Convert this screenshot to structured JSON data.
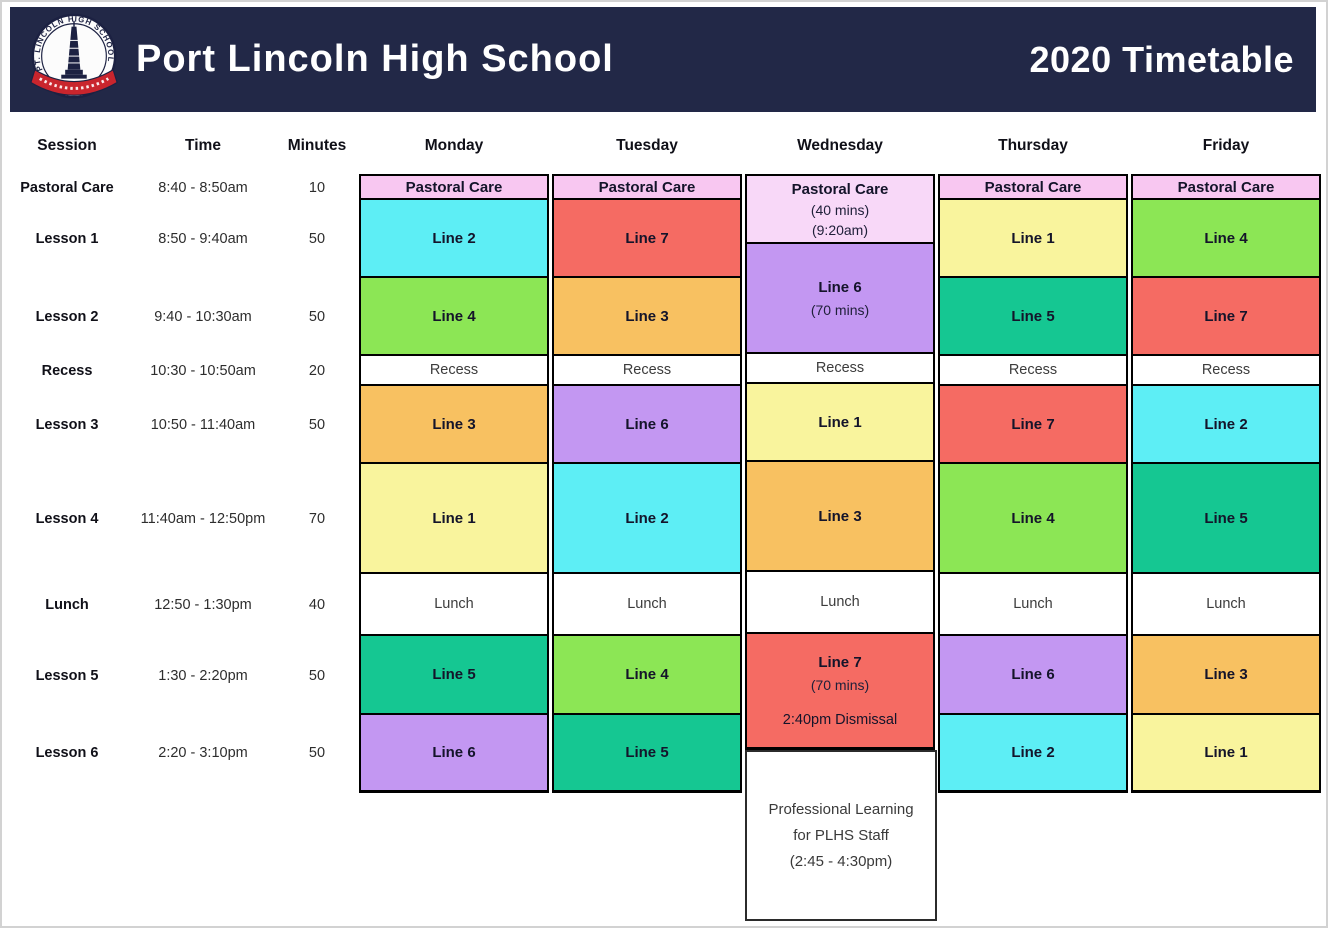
{
  "header": {
    "school_name": "Port Lincoln High School",
    "title": "2020 Timetable",
    "bg_color": "#222847",
    "logo_ring_text": "PT. LINCOLN  HIGH  SCHOOL",
    "logo_banner_color": "#c9252d"
  },
  "columns": {
    "session_header": "Session",
    "time_header": "Time",
    "minutes_header": "Minutes",
    "day_headers": [
      "Monday",
      "Tuesday",
      "Wednesday",
      "Thursday",
      "Friday"
    ]
  },
  "sessions": [
    {
      "name": "Pastoral Care",
      "time": "8:40 - 8:50am",
      "minutes": "10"
    },
    {
      "name": "Lesson 1",
      "time": "8:50 - 9:40am",
      "minutes": "50"
    },
    {
      "name": "Lesson 2",
      "time": "9:40 - 10:30am",
      "minutes": "50"
    },
    {
      "name": "Recess",
      "time": "10:30 - 10:50am",
      "minutes": "20"
    },
    {
      "name": "Lesson 3",
      "time": "10:50 - 11:40am",
      "minutes": "50"
    },
    {
      "name": "Lesson 4",
      "time": "11:40am - 12:50pm",
      "minutes": "70"
    },
    {
      "name": "Lunch",
      "time": "12:50 - 1:30pm",
      "minutes": "40"
    },
    {
      "name": "Lesson 5",
      "time": "1:30 - 2:20pm",
      "minutes": "50"
    },
    {
      "name": "Lesson 6",
      "time": "2:20 - 3:10pm",
      "minutes": "50"
    }
  ],
  "palette": {
    "pink": "#f8c7f1",
    "pinklight": "#f8d8f8",
    "cyan": "#5deef5",
    "green": "#8ce655",
    "red": "#f56b63",
    "orange": "#f8c161",
    "yellow": "#f9f49d",
    "teal": "#15c792",
    "purple": "#c397f2",
    "white": "#ffffff"
  },
  "days": [
    {
      "label": "Monday",
      "cells": [
        {
          "label": "Pastoral Care",
          "color": "pink"
        },
        {
          "label": "Line 2",
          "color": "cyan"
        },
        {
          "label": "Line 4",
          "color": "green"
        },
        {
          "label": "Recess",
          "color": "white"
        },
        {
          "label": "Line 3",
          "color": "orange"
        },
        {
          "label": "Line 1",
          "color": "yellow"
        },
        {
          "label": "Lunch",
          "color": "white"
        },
        {
          "label": "Line 5",
          "color": "teal"
        },
        {
          "label": "Line 6",
          "color": "purple"
        }
      ]
    },
    {
      "label": "Tuesday",
      "cells": [
        {
          "label": "Pastoral Care",
          "color": "pink"
        },
        {
          "label": "Line 7",
          "color": "red"
        },
        {
          "label": "Line 3",
          "color": "orange"
        },
        {
          "label": "Recess",
          "color": "white"
        },
        {
          "label": "Line 6",
          "color": "purple"
        },
        {
          "label": "Line 2",
          "color": "cyan"
        },
        {
          "label": "Lunch",
          "color": "white"
        },
        {
          "label": "Line 4",
          "color": "green"
        },
        {
          "label": "Line 5",
          "color": "teal"
        }
      ]
    },
    {
      "label": "Wednesday",
      "cells": [
        {
          "label": "Pastoral Care",
          "sub": [
            "(40 mins)",
            "(9:20am)"
          ],
          "color": "pinklight"
        },
        {
          "label": "Line 6",
          "sub": [
            "(70 mins)"
          ],
          "color": "purple"
        },
        {
          "label": "Recess",
          "color": "white"
        },
        {
          "label": "Line 1",
          "color": "yellow"
        },
        {
          "label": "Line 3",
          "color": "orange"
        },
        {
          "label": "Lunch",
          "color": "white"
        },
        {
          "label": "Line 7",
          "sub": [
            "(70 mins)"
          ],
          "footer": "2:40pm Dismissal",
          "color": "red"
        }
      ]
    },
    {
      "label": "Thursday",
      "cells": [
        {
          "label": "Pastoral Care",
          "color": "pink"
        },
        {
          "label": "Line 1",
          "color": "yellow"
        },
        {
          "label": "Line 5",
          "color": "teal"
        },
        {
          "label": "Recess",
          "color": "white"
        },
        {
          "label": "Line 7",
          "color": "red"
        },
        {
          "label": "Line 4",
          "color": "green"
        },
        {
          "label": "Lunch",
          "color": "white"
        },
        {
          "label": "Line 6",
          "color": "purple"
        },
        {
          "label": "Line 2",
          "color": "cyan"
        }
      ]
    },
    {
      "label": "Friday",
      "cells": [
        {
          "label": "Pastoral Care",
          "color": "pink"
        },
        {
          "label": "Line 4",
          "color": "green"
        },
        {
          "label": "Line 7",
          "color": "red"
        },
        {
          "label": "Recess",
          "color": "white"
        },
        {
          "label": "Line 2",
          "color": "cyan"
        },
        {
          "label": "Line 5",
          "color": "teal"
        },
        {
          "label": "Lunch",
          "color": "white"
        },
        {
          "label": "Line 3",
          "color": "orange"
        },
        {
          "label": "Line 1",
          "color": "yellow"
        }
      ]
    }
  ],
  "professional_learning": {
    "lines": [
      "Professional Learning",
      "for PLHS Staff",
      "(2:45 - 4:30pm)"
    ]
  }
}
